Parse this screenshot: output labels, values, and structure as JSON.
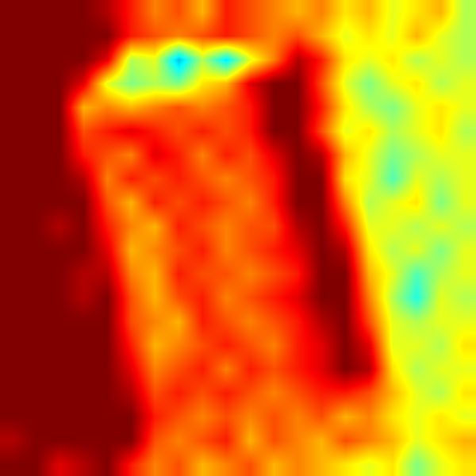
{
  "chart_data": {
    "type": "heatmap",
    "tick_labels": false,
    "zlim": [
      0,
      1
    ],
    "z": [
      [
        1,
        1,
        1,
        1,
        0.95,
        0.85,
        0.75,
        0.8,
        0.7,
        0.85,
        0.8,
        0.75,
        0.7,
        0.75,
        0.65,
        0.7,
        0.6,
        0.65,
        0.7,
        0.55
      ],
      [
        1,
        1,
        1,
        1,
        1,
        0.85,
        0.8,
        0.75,
        0.8,
        0.85,
        0.8,
        0.75,
        0.8,
        0.7,
        0.6,
        0.65,
        0.6,
        0.7,
        0.6,
        0.55
      ],
      [
        1,
        1,
        1,
        1,
        0.9,
        0.55,
        0.6,
        0.3,
        0.55,
        0.35,
        0.6,
        0.75,
        0.95,
        0.85,
        0.65,
        0.6,
        0.65,
        0.55,
        0.6,
        0.55
      ],
      [
        1,
        1,
        1,
        0.9,
        0.6,
        0.5,
        0.55,
        0.5,
        0.65,
        0.7,
        0.9,
        1,
        1,
        0.8,
        0.6,
        0.5,
        0.6,
        0.65,
        0.55,
        0.6
      ],
      [
        1,
        1,
        1,
        0.7,
        0.75,
        0.7,
        0.75,
        0.8,
        0.75,
        0.8,
        0.85,
        1,
        1,
        0.85,
        0.65,
        0.55,
        0.5,
        0.6,
        0.65,
        0.6
      ],
      [
        1,
        1,
        1,
        0.8,
        0.85,
        0.9,
        0.85,
        0.8,
        0.85,
        0.8,
        0.85,
        1,
        1,
        0.8,
        0.6,
        0.65,
        0.55,
        0.6,
        0.65,
        0.55
      ],
      [
        1,
        1,
        1,
        0.85,
        0.8,
        0.75,
        0.9,
        0.85,
        0.75,
        0.85,
        0.8,
        0.9,
        1,
        0.95,
        0.7,
        0.6,
        0.5,
        0.55,
        0.6,
        0.6
      ],
      [
        1,
        1,
        1,
        0.95,
        0.75,
        0.85,
        0.8,
        0.85,
        0.8,
        0.75,
        0.8,
        0.85,
        1,
        1,
        0.65,
        0.6,
        0.45,
        0.6,
        0.55,
        0.6
      ],
      [
        1,
        1,
        1,
        1,
        0.8,
        0.7,
        0.85,
        0.8,
        0.85,
        0.8,
        0.75,
        0.85,
        1,
        1,
        0.75,
        0.55,
        0.6,
        0.65,
        0.5,
        0.6
      ],
      [
        1,
        1,
        0.95,
        1,
        0.85,
        0.75,
        0.7,
        0.85,
        0.8,
        0.75,
        0.8,
        0.8,
        0.95,
        1,
        0.85,
        0.6,
        0.6,
        0.55,
        0.6,
        0.55
      ],
      [
        1,
        1,
        1,
        1,
        0.9,
        0.7,
        0.75,
        0.8,
        0.85,
        0.75,
        0.8,
        0.85,
        0.9,
        1,
        0.95,
        0.65,
        0.55,
        0.6,
        0.5,
        0.6
      ],
      [
        1,
        1,
        1,
        0.95,
        0.95,
        0.75,
        0.7,
        0.85,
        0.8,
        0.8,
        0.75,
        0.8,
        0.85,
        1,
        1,
        0.7,
        0.6,
        0.45,
        0.55,
        0.6
      ],
      [
        1,
        1,
        1,
        0.95,
        1,
        0.8,
        0.7,
        0.8,
        0.85,
        0.75,
        0.8,
        0.85,
        0.9,
        1,
        1,
        0.75,
        0.55,
        0.4,
        0.6,
        0.55
      ],
      [
        1,
        1,
        1,
        1,
        1,
        0.8,
        0.75,
        0.7,
        0.85,
        0.8,
        0.75,
        0.8,
        0.85,
        0.95,
        1,
        0.8,
        0.6,
        0.55,
        0.6,
        0.6
      ],
      [
        1,
        1,
        1,
        1,
        1,
        0.85,
        0.7,
        0.75,
        0.8,
        0.85,
        0.8,
        0.75,
        0.85,
        0.9,
        1,
        0.9,
        0.6,
        0.6,
        0.55,
        0.65
      ],
      [
        1,
        1,
        1,
        1,
        1,
        0.9,
        0.75,
        0.8,
        0.85,
        0.75,
        0.85,
        0.8,
        0.85,
        0.9,
        1,
        0.95,
        0.65,
        0.55,
        0.6,
        0.6
      ],
      [
        1,
        1,
        1,
        1,
        1,
        0.95,
        0.8,
        0.85,
        0.8,
        0.85,
        0.8,
        0.75,
        0.8,
        0.85,
        0.85,
        0.8,
        0.7,
        0.6,
        0.55,
        0.65
      ],
      [
        1,
        1,
        1,
        1,
        1,
        1,
        0.85,
        0.8,
        0.75,
        0.8,
        0.75,
        0.8,
        0.75,
        0.8,
        0.7,
        0.75,
        0.65,
        0.6,
        0.65,
        0.6
      ],
      [
        0.95,
        1,
        1,
        1,
        1,
        1,
        0.8,
        0.75,
        0.8,
        0.85,
        0.7,
        0.8,
        0.75,
        0.7,
        0.8,
        0.75,
        0.7,
        0.6,
        0.65,
        0.7
      ],
      [
        1,
        1,
        0.9,
        0.95,
        1,
        0.85,
        0.75,
        0.8,
        0.7,
        0.75,
        0.8,
        0.7,
        0.75,
        0.7,
        0.65,
        0.6,
        0.65,
        0.5,
        0.6,
        0.65
      ]
    ]
  }
}
